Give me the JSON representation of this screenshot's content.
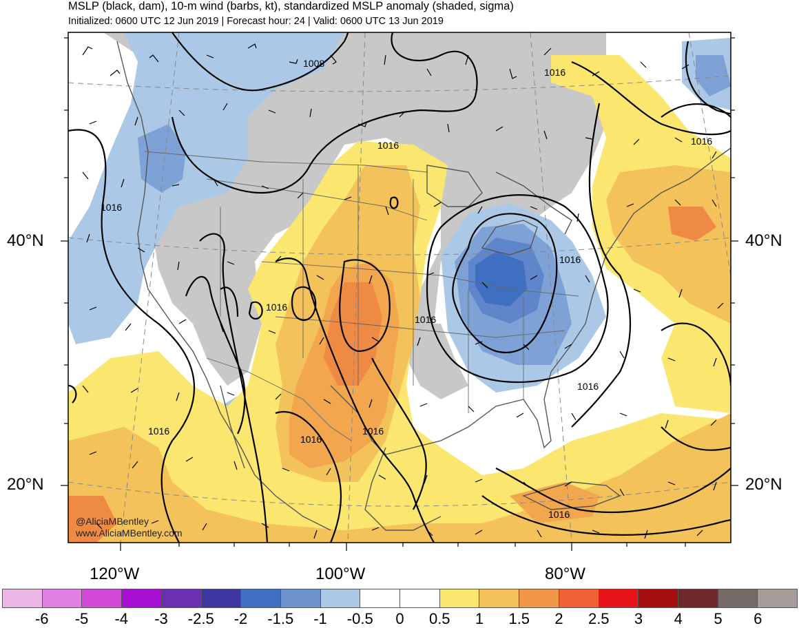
{
  "header": {
    "title": "MSLP (black, dam), 10-m wind (barbs, kt), standardized MSLP anomaly (shaded, sigma)",
    "subtitle": "Initialized: 0600 UTC 12 Jun 2019 | Forecast hour: 24 | Valid: 0600 UTC 13 Jun 2019"
  },
  "map": {
    "lat_labels": [
      "40°N",
      "20°N"
    ],
    "lon_labels": [
      "120°W",
      "100°W",
      "80°W"
    ],
    "isobar_labels": [
      "1008",
      "1016",
      "1016",
      "1016",
      "1016",
      "1016",
      "1016",
      "1016",
      "1016",
      "1016",
      "1016",
      "1016"
    ],
    "anomaly_colors": {
      "neg_2": "#3f6fc0",
      "neg_1_5": "#5f86cb",
      "neg_1": "#7fa2d6",
      "neg_0_5": "#abc9e6",
      "neutral_land": "#c8c8c8",
      "pos_0_5": "#fbe770",
      "pos_1": "#f4c25a",
      "pos_1_5": "#f2a64e",
      "pos_2": "#ef8a45"
    }
  },
  "colorbar": {
    "colors": [
      "#ebb8e6",
      "#e27fe2",
      "#d44ad8",
      "#a80fd3",
      "#6a2fb2",
      "#3d36a1",
      "#3f6fc0",
      "#6f93cf",
      "#abc9e6",
      "#ffffff",
      "#ffffff",
      "#fbe770",
      "#f4c25a",
      "#f2964a",
      "#f26035",
      "#e8141a",
      "#a5100e",
      "#6e2a2a",
      "#766a68",
      "#a69d9b"
    ],
    "labels": [
      "-6",
      "-5",
      "-4",
      "-3",
      "-2.5",
      "-2",
      "-1.5",
      "-1",
      "-0.5",
      "0",
      "0.5",
      "1",
      "1.5",
      "2",
      "2.5",
      "3",
      "4",
      "5",
      "6"
    ]
  },
  "credit": {
    "handle": "@AliciaMBentley",
    "website": "www.AliciaMBentley.com"
  }
}
